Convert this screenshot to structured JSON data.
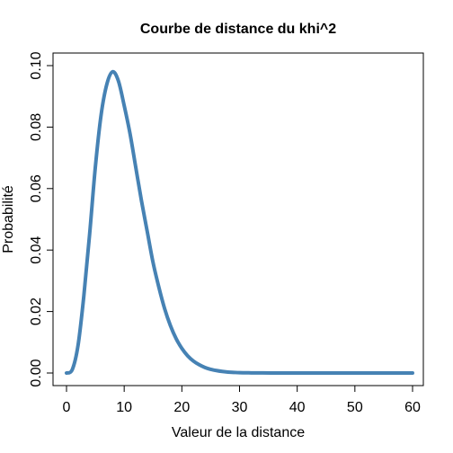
{
  "colors": {
    "series": "#4682B4",
    "axis": "#000000",
    "background": "#FFFFFF"
  },
  "chart_data": {
    "type": "line",
    "title": "Courbe de distance du khi^2",
    "xlabel": "Valeur de la distance",
    "ylabel": "Probabilité",
    "xlim": [
      0,
      60
    ],
    "ylim": [
      0,
      0.1
    ],
    "grid": false,
    "legend": "none",
    "x_ticks": [
      0,
      10,
      20,
      30,
      40,
      50,
      60
    ],
    "x_tick_labels": [
      "0",
      "10",
      "20",
      "30",
      "40",
      "50",
      "60"
    ],
    "y_ticks": [
      0,
      0.02,
      0.04,
      0.06,
      0.08,
      0.1
    ],
    "y_tick_labels": [
      "0.00",
      "0.02",
      "0.04",
      "0.06",
      "0.08",
      "0.10"
    ],
    "series": [
      {
        "name": "khi^2",
        "x": [
          0,
          1,
          2,
          3,
          4,
          5,
          6,
          7,
          8,
          9,
          10,
          11,
          12,
          13,
          14,
          15,
          16,
          17,
          18,
          19,
          20,
          21,
          22,
          23,
          24,
          25,
          26,
          27,
          28,
          29,
          30,
          32,
          34,
          36,
          38,
          40,
          45,
          50,
          55,
          60
        ],
        "y": [
          0,
          0.0011,
          0.009,
          0.025,
          0.045,
          0.067,
          0.084,
          0.094,
          0.098,
          0.095,
          0.087,
          0.078,
          0.067,
          0.056,
          0.046,
          0.036,
          0.028,
          0.021,
          0.0155,
          0.0112,
          0.008,
          0.0056,
          0.0039,
          0.0027,
          0.0018,
          0.0012,
          0.0008,
          0.0005,
          0.0003,
          0.0002,
          0.0001,
          5e-05,
          2e-05,
          1e-05,
          0,
          0,
          0,
          0,
          0,
          0
        ]
      }
    ]
  }
}
